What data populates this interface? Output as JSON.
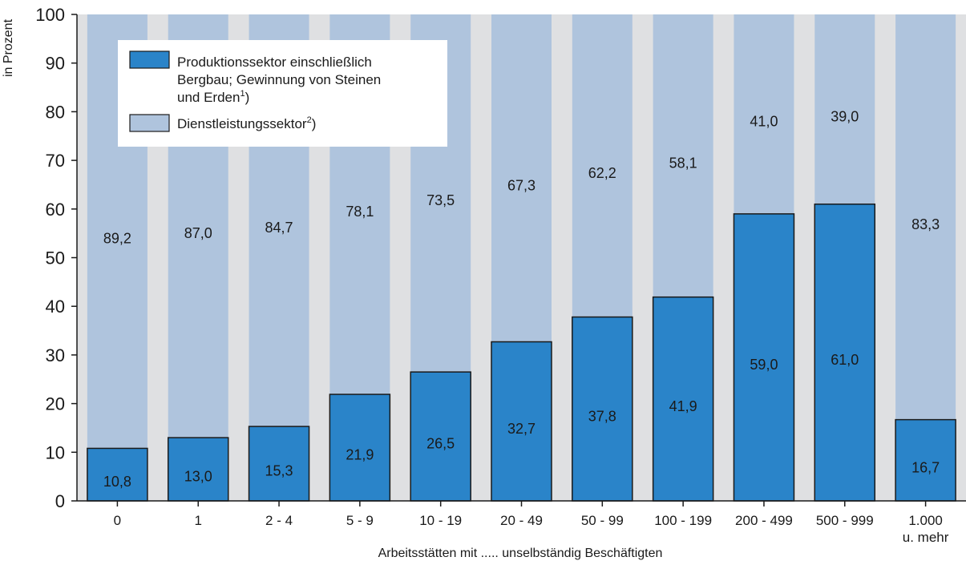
{
  "chart_data": {
    "type": "bar",
    "stacked": true,
    "percent": true,
    "categories": [
      "0",
      "1",
      "2 - 4",
      "5 - 9",
      "10 - 19",
      "20 - 49",
      "50 - 99",
      "100 - 199",
      "200 - 499",
      "500 - 999",
      "1.000 u. mehr"
    ],
    "series": [
      {
        "name": "Produktionssektor einschließlich Bergbau; Gewinnung von Steinen und Erden1)",
        "legend_lines": [
          "Produktionssektor einschließlich",
          "Bergbau; Gewinnung von Steinen",
          "und Erden",
          "1",
          ")"
        ],
        "color": "#2a84c9",
        "values": [
          10.8,
          13.0,
          15.3,
          21.9,
          26.5,
          32.7,
          37.8,
          41.9,
          59.0,
          61.0,
          16.7
        ],
        "labels": [
          "10,8",
          "13,0",
          "15,3",
          "21,9",
          "26,5",
          "32,7",
          "37,8",
          "41,9",
          "59,0",
          "61,0",
          "16,7"
        ]
      },
      {
        "name": "Dienstleistungssektor2)",
        "legend_lines": [
          "Dienstleistungssektor",
          "2",
          ")"
        ],
        "color": "#afc4dd",
        "values": [
          89.2,
          87.0,
          84.7,
          78.1,
          73.5,
          67.3,
          62.2,
          58.1,
          41.0,
          39.0,
          83.3
        ],
        "labels": [
          "89,2",
          "87,0",
          "84,7",
          "78,1",
          "73,5",
          "67,3",
          "62,2",
          "58,1",
          "41,0",
          "39,0",
          "83,3"
        ]
      }
    ],
    "xlabel": "Arbeitsstätten mit ..... unselbständig Beschäftigten",
    "ylabel": "in Prozent",
    "ylim": [
      0,
      100
    ],
    "yticks": [
      0,
      10,
      20,
      30,
      40,
      50,
      60,
      70,
      80,
      90,
      100
    ],
    "grid": false,
    "legend_position": "top-left",
    "colors": {
      "background_stripe": "#dfe0e2",
      "bar_outline": "#1a1a1a",
      "axis": "#1a1a1a"
    }
  }
}
